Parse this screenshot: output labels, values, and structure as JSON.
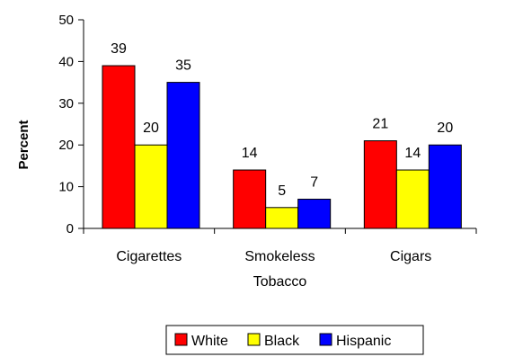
{
  "chart_data": {
    "type": "bar",
    "ylabel": "Percent",
    "ylim": [
      0,
      50
    ],
    "yticks": [
      0,
      10,
      20,
      30,
      40,
      50
    ],
    "grid": false,
    "legend_position": "bottom",
    "categories": [
      [
        "Cigarettes"
      ],
      [
        "Smokeless",
        "Tobacco"
      ],
      [
        "Cigars"
      ]
    ],
    "series": [
      {
        "name": "White",
        "color": "#ff0000",
        "values": [
          39,
          14,
          21
        ]
      },
      {
        "name": "Black",
        "color": "#ffff00",
        "values": [
          20,
          5,
          14
        ]
      },
      {
        "name": "Hispanic",
        "color": "#0000ff",
        "values": [
          35,
          7,
          20
        ]
      }
    ]
  }
}
